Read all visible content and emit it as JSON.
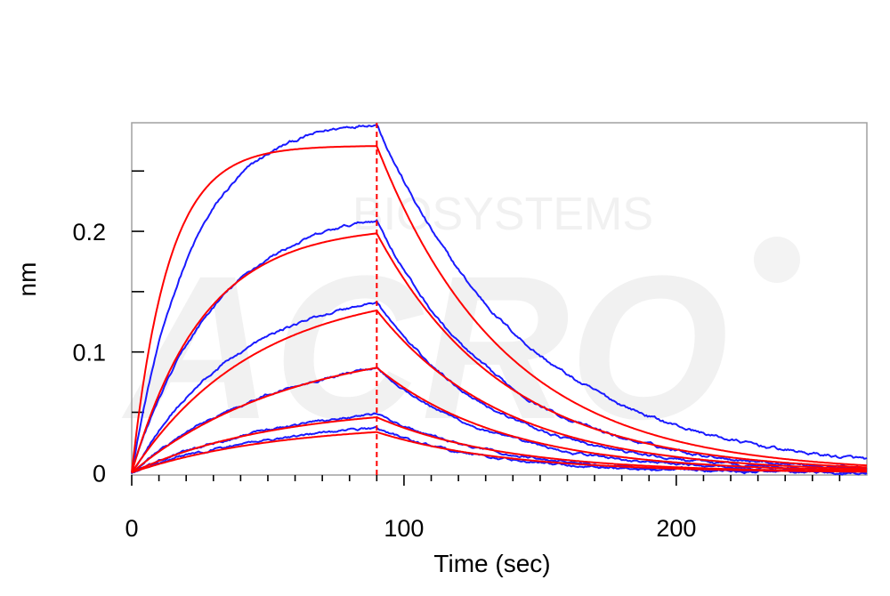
{
  "watermark": {
    "line1": "BIOSYSTEMS",
    "line2": "ACRO"
  },
  "chart_data": {
    "type": "line",
    "title": "",
    "xlabel": "Time (sec)",
    "ylabel": "nm",
    "xlim": [
      0,
      270
    ],
    "ylim": [
      -0.002,
      0.29
    ],
    "x_ticks": [
      0,
      100,
      200
    ],
    "x_tick_labels": [
      "0",
      "100",
      "200"
    ],
    "y_ticks": [
      0,
      0.1,
      0.2
    ],
    "y_tick_labels": [
      "0",
      "0.1",
      "0.2"
    ],
    "association_end": 90,
    "colors": {
      "measured": "#1a1aff",
      "fit": "#ff0000",
      "frame": "#a0a0a0"
    },
    "series": [
      {
        "kind": "measured",
        "assoc_max": 0.295,
        "assoc_k": 0.045,
        "dissoc_k": 0.0182,
        "noise": 0.0018
      },
      {
        "kind": "fit",
        "assoc_max": 0.271,
        "assoc_k": 0.075,
        "dissoc_k": 0.0212
      },
      {
        "kind": "measured",
        "assoc_max": 0.222,
        "assoc_k": 0.032,
        "dissoc_k": 0.022,
        "noise": 0.0016
      },
      {
        "kind": "fit",
        "assoc_max": 0.205,
        "assoc_k": 0.038,
        "dissoc_k": 0.0212
      },
      {
        "kind": "measured",
        "assoc_max": 0.158,
        "assoc_k": 0.025,
        "dissoc_k": 0.023,
        "noise": 0.0015
      },
      {
        "kind": "fit",
        "assoc_max": 0.156,
        "assoc_k": 0.022,
        "dissoc_k": 0.0212
      },
      {
        "kind": "measured",
        "assoc_max": 0.109,
        "assoc_k": 0.018,
        "dissoc_k": 0.023,
        "noise": 0.0014
      },
      {
        "kind": "fit",
        "assoc_max": 0.111,
        "assoc_k": 0.017,
        "dissoc_k": 0.0212
      },
      {
        "kind": "measured",
        "assoc_max": 0.064,
        "assoc_k": 0.016,
        "dissoc_k": 0.024,
        "noise": 0.0014
      },
      {
        "kind": "fit",
        "assoc_max": 0.056,
        "assoc_k": 0.019,
        "dissoc_k": 0.0212
      },
      {
        "kind": "measured",
        "assoc_max": 0.046,
        "assoc_k": 0.018,
        "dissoc_k": 0.025,
        "noise": 0.0014
      },
      {
        "kind": "fit",
        "assoc_max": 0.041,
        "assoc_k": 0.019,
        "dissoc_k": 0.0212
      }
    ]
  }
}
